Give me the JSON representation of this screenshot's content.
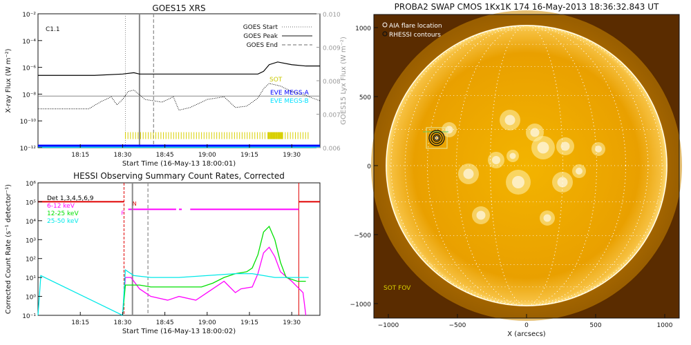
{
  "chart_data": [
    {
      "type": "line",
      "title": "GOES15 XRS",
      "xlabel": "Start Time (16-May-13 18:00:01)",
      "ylabel": "X-ray Flux (W m⁻²)",
      "y2label": "GOES15 Lyx Flux (W m⁻²)",
      "x_ticks": [
        "18:15",
        "18:30",
        "18:45",
        "19:00",
        "19:15",
        "19:30"
      ],
      "y_ticks": [
        "10⁻²",
        "10⁻⁴",
        "10⁻⁶",
        "10⁻⁸",
        "10⁻¹⁰",
        "10⁻¹²"
      ],
      "y2_ticks": [
        "0.010",
        "0.009",
        "0.008",
        "0.007",
        "0.006"
      ],
      "log_scale": true,
      "ylim": [
        -12,
        -2
      ],
      "xlim_minutes": [
        0,
        100
      ],
      "class_label": "C1.1",
      "legend": [
        {
          "name": "GOES Start",
          "style": "dotted",
          "color": "#888888"
        },
        {
          "name": "GOES Peak",
          "style": "solid",
          "color": "#888888"
        },
        {
          "name": "GOES End",
          "style": "dashed",
          "color": "#888888"
        }
      ],
      "extra_labels": [
        {
          "text": "SOT",
          "color": "#c8c800"
        },
        {
          "text": "EVE MEGS-A",
          "color": "#0000ff"
        },
        {
          "text": "EVE MEGS-B",
          "color": "#00e0ff"
        }
      ],
      "event_lines_minutes": {
        "start": 31,
        "peak": 36,
        "end": 41
      },
      "series": [
        {
          "name": "long",
          "color": "#000000",
          "x": [
            0,
            20,
            30,
            34,
            36,
            40,
            50,
            60,
            70,
            75,
            78,
            80,
            82,
            85,
            90,
            95,
            100
          ],
          "y": [
            -6.6,
            -6.6,
            -6.5,
            -6.4,
            -6.5,
            -6.5,
            -6.5,
            -6.5,
            -6.5,
            -6.5,
            -6.5,
            -6.3,
            -5.8,
            -5.6,
            -5.8,
            -5.9,
            -5.9
          ]
        },
        {
          "name": "short",
          "color": "#000000",
          "x": [
            0,
            10,
            18,
            22,
            26,
            28,
            30,
            32,
            34,
            38,
            44,
            48,
            50,
            54,
            60,
            66,
            70,
            74,
            78,
            80,
            82,
            86,
            90,
            95,
            100
          ],
          "y": [
            -9.1,
            -9.1,
            -9.1,
            -8.6,
            -8.2,
            -8.8,
            -8.4,
            -7.8,
            -7.7,
            -8.4,
            -8.6,
            -8.2,
            -9.2,
            -9.0,
            -8.4,
            -8.2,
            -9.0,
            -8.9,
            -8.3,
            -7.6,
            -7.2,
            -7.4,
            -7.8,
            -8.1,
            -8.5
          ]
        }
      ]
    },
    {
      "type": "line",
      "title": "HESSI Observing Summary Count Rates, Corrected",
      "xlabel": "Start Time (16-May-13 18:00:02)",
      "ylabel": "Corrected Count Rate (s⁻¹ detector⁻¹)",
      "x_ticks": [
        "18:15",
        "18:30",
        "18:45",
        "19:00",
        "19:15",
        "19:30"
      ],
      "y_ticks": [
        "10⁶",
        "10⁵",
        "10⁴",
        "10³",
        "10²",
        "10¹",
        "10⁰",
        "10⁻¹"
      ],
      "log_scale": true,
      "ylim": [
        -1,
        6
      ],
      "flag_labels": [
        "F",
        "N"
      ],
      "legend": [
        {
          "name": "Det 1,3,4,5,6,9",
          "color": "#000000"
        },
        {
          "name": "6-12 keV",
          "color": "#ff00ff"
        },
        {
          "name": "12-25 keV",
          "color": "#00e000"
        },
        {
          "name": "25-50 keV",
          "color": "#00e8e8"
        }
      ],
      "series": [
        {
          "name": "6-12 keV",
          "color": "#ff00ff",
          "x": [
            30,
            31,
            33,
            36,
            40,
            46,
            50,
            56,
            60,
            62,
            66,
            68,
            70,
            72,
            76,
            78,
            80,
            82,
            84,
            86,
            90,
            94,
            95
          ],
          "y": [
            -1,
            1.0,
            1.0,
            0.4,
            0.0,
            -0.2,
            0.0,
            -0.2,
            0.2,
            0.4,
            0.8,
            0.5,
            0.2,
            0.4,
            0.5,
            1.2,
            2.3,
            2.6,
            2.1,
            1.3,
            0.8,
            0.2,
            -1
          ]
        },
        {
          "name": "12-25 keV",
          "color": "#00e000",
          "x": [
            30,
            31,
            36,
            40,
            46,
            52,
            58,
            62,
            66,
            70,
            74,
            76,
            78,
            80,
            82,
            84,
            86,
            88,
            92,
            95
          ],
          "y": [
            -1,
            0.6,
            0.6,
            0.5,
            0.5,
            0.5,
            0.5,
            0.7,
            1.0,
            1.2,
            1.3,
            1.5,
            2.2,
            3.4,
            3.7,
            3.0,
            1.8,
            1.0,
            0.8,
            0.8
          ]
        },
        {
          "name": "25-50 keV",
          "color": "#00e8e8",
          "x": [
            0,
            1,
            30,
            31,
            34,
            40,
            50,
            60,
            70,
            76,
            80,
            84,
            88,
            92,
            96
          ],
          "y": [
            -1,
            1.1,
            -1,
            1.4,
            1.1,
            1.0,
            1.0,
            1.1,
            1.2,
            1.2,
            1.1,
            1.0,
            1.0,
            1.0,
            1.0
          ]
        }
      ]
    },
    {
      "type": "image",
      "title": "PROBA2 SWAP CMOS 1Kx1K 174 16-May-2013 18:36:32.843 UT",
      "xlabel": "X (arcsecs)",
      "x_ticks": [
        "−1000",
        "−500",
        "0",
        "500",
        "1000"
      ],
      "y_ticks": [
        "1000",
        "500",
        "0",
        "−500",
        "−1000"
      ],
      "legend": [
        {
          "name": "AIA flare location"
        },
        {
          "name": "RHESSI contours"
        }
      ],
      "fov_label": "SOT FOV",
      "flare_location_arcsec": [
        -650,
        200
      ]
    }
  ]
}
